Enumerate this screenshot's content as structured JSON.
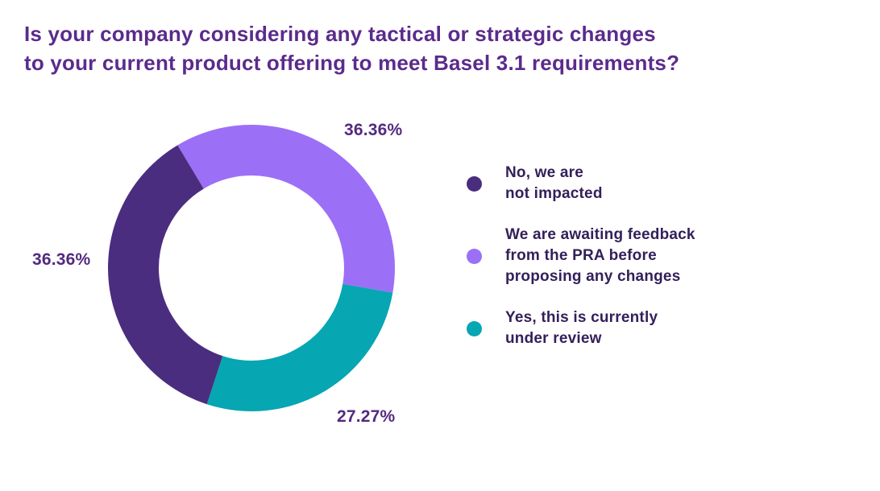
{
  "title": {
    "lines": [
      "Is your company considering any tactical or strategic changes",
      "to your current product offering to meet Basel 3.1 requirements?"
    ],
    "color": "#5b2b8c"
  },
  "chart_data": {
    "type": "pie",
    "variant": "donut",
    "title": "Is your company considering any tactical or strategic changes to your current product offering to meet Basel 3.1 requirements?",
    "unit": "%",
    "start_angle_deg": -31,
    "inner_radius_ratio": 0.646,
    "segments": [
      {
        "label": "We are awaiting feedback from the PRA before proposing any changes",
        "value": 36.36,
        "display": "36.36%",
        "color": "#9c6ff7"
      },
      {
        "label": "Yes, this is currently under review",
        "value": 27.27,
        "display": "27.27%",
        "color": "#06a6b2"
      },
      {
        "label": "No, we are not impacted",
        "value": 36.36,
        "display": "36.36%",
        "color": "#4b2d7f"
      }
    ],
    "legend_position": "right",
    "legend": [
      {
        "lines": [
          "No, we are",
          "not impacted"
        ],
        "color": "#4b2d7f"
      },
      {
        "lines": [
          "We are awaiting feedback",
          "from the PRA before",
          "proposing any changes"
        ],
        "color": "#9c6ff7"
      },
      {
        "lines": [
          "Yes, this is currently",
          "under review"
        ],
        "color": "#06a6b2"
      }
    ],
    "value_label_color": "#532a80",
    "legend_text_color": "#33205a"
  }
}
